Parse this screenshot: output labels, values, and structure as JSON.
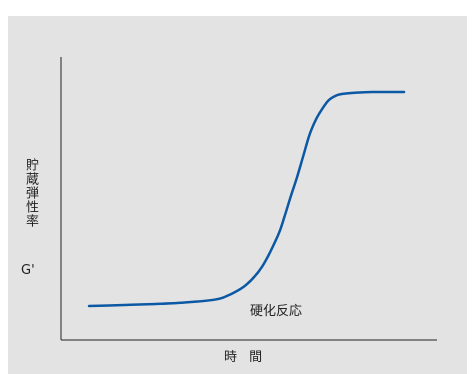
{
  "chart_data": {
    "type": "line",
    "title": "",
    "xlabel": "時 間",
    "ylabel": "貯蔵弾性率",
    "yunit": "G'",
    "annotations": [
      {
        "text": "硬化反応"
      }
    ],
    "x_ticks": [],
    "y_ticks": [],
    "grid": false,
    "legend": "none",
    "series": [
      {
        "color": "#0b58a4",
        "x": [
          0.0,
          0.1,
          0.2,
          0.3,
          0.4,
          0.45,
          0.5,
          0.55,
          0.6,
          0.62,
          0.64,
          0.66,
          0.68,
          0.7,
          0.72,
          0.74,
          0.76,
          0.78,
          0.8,
          0.85,
          0.9,
          1.0
        ],
        "y": [
          0.0,
          0.004,
          0.009,
          0.016,
          0.03,
          0.055,
          0.1,
          0.185,
          0.33,
          0.415,
          0.51,
          0.6,
          0.7,
          0.8,
          0.87,
          0.92,
          0.96,
          0.98,
          0.99,
          0.997,
          1.0,
          1.0
        ]
      }
    ],
    "xlim": [
      0,
      1
    ],
    "ylim": [
      0,
      1
    ]
  }
}
